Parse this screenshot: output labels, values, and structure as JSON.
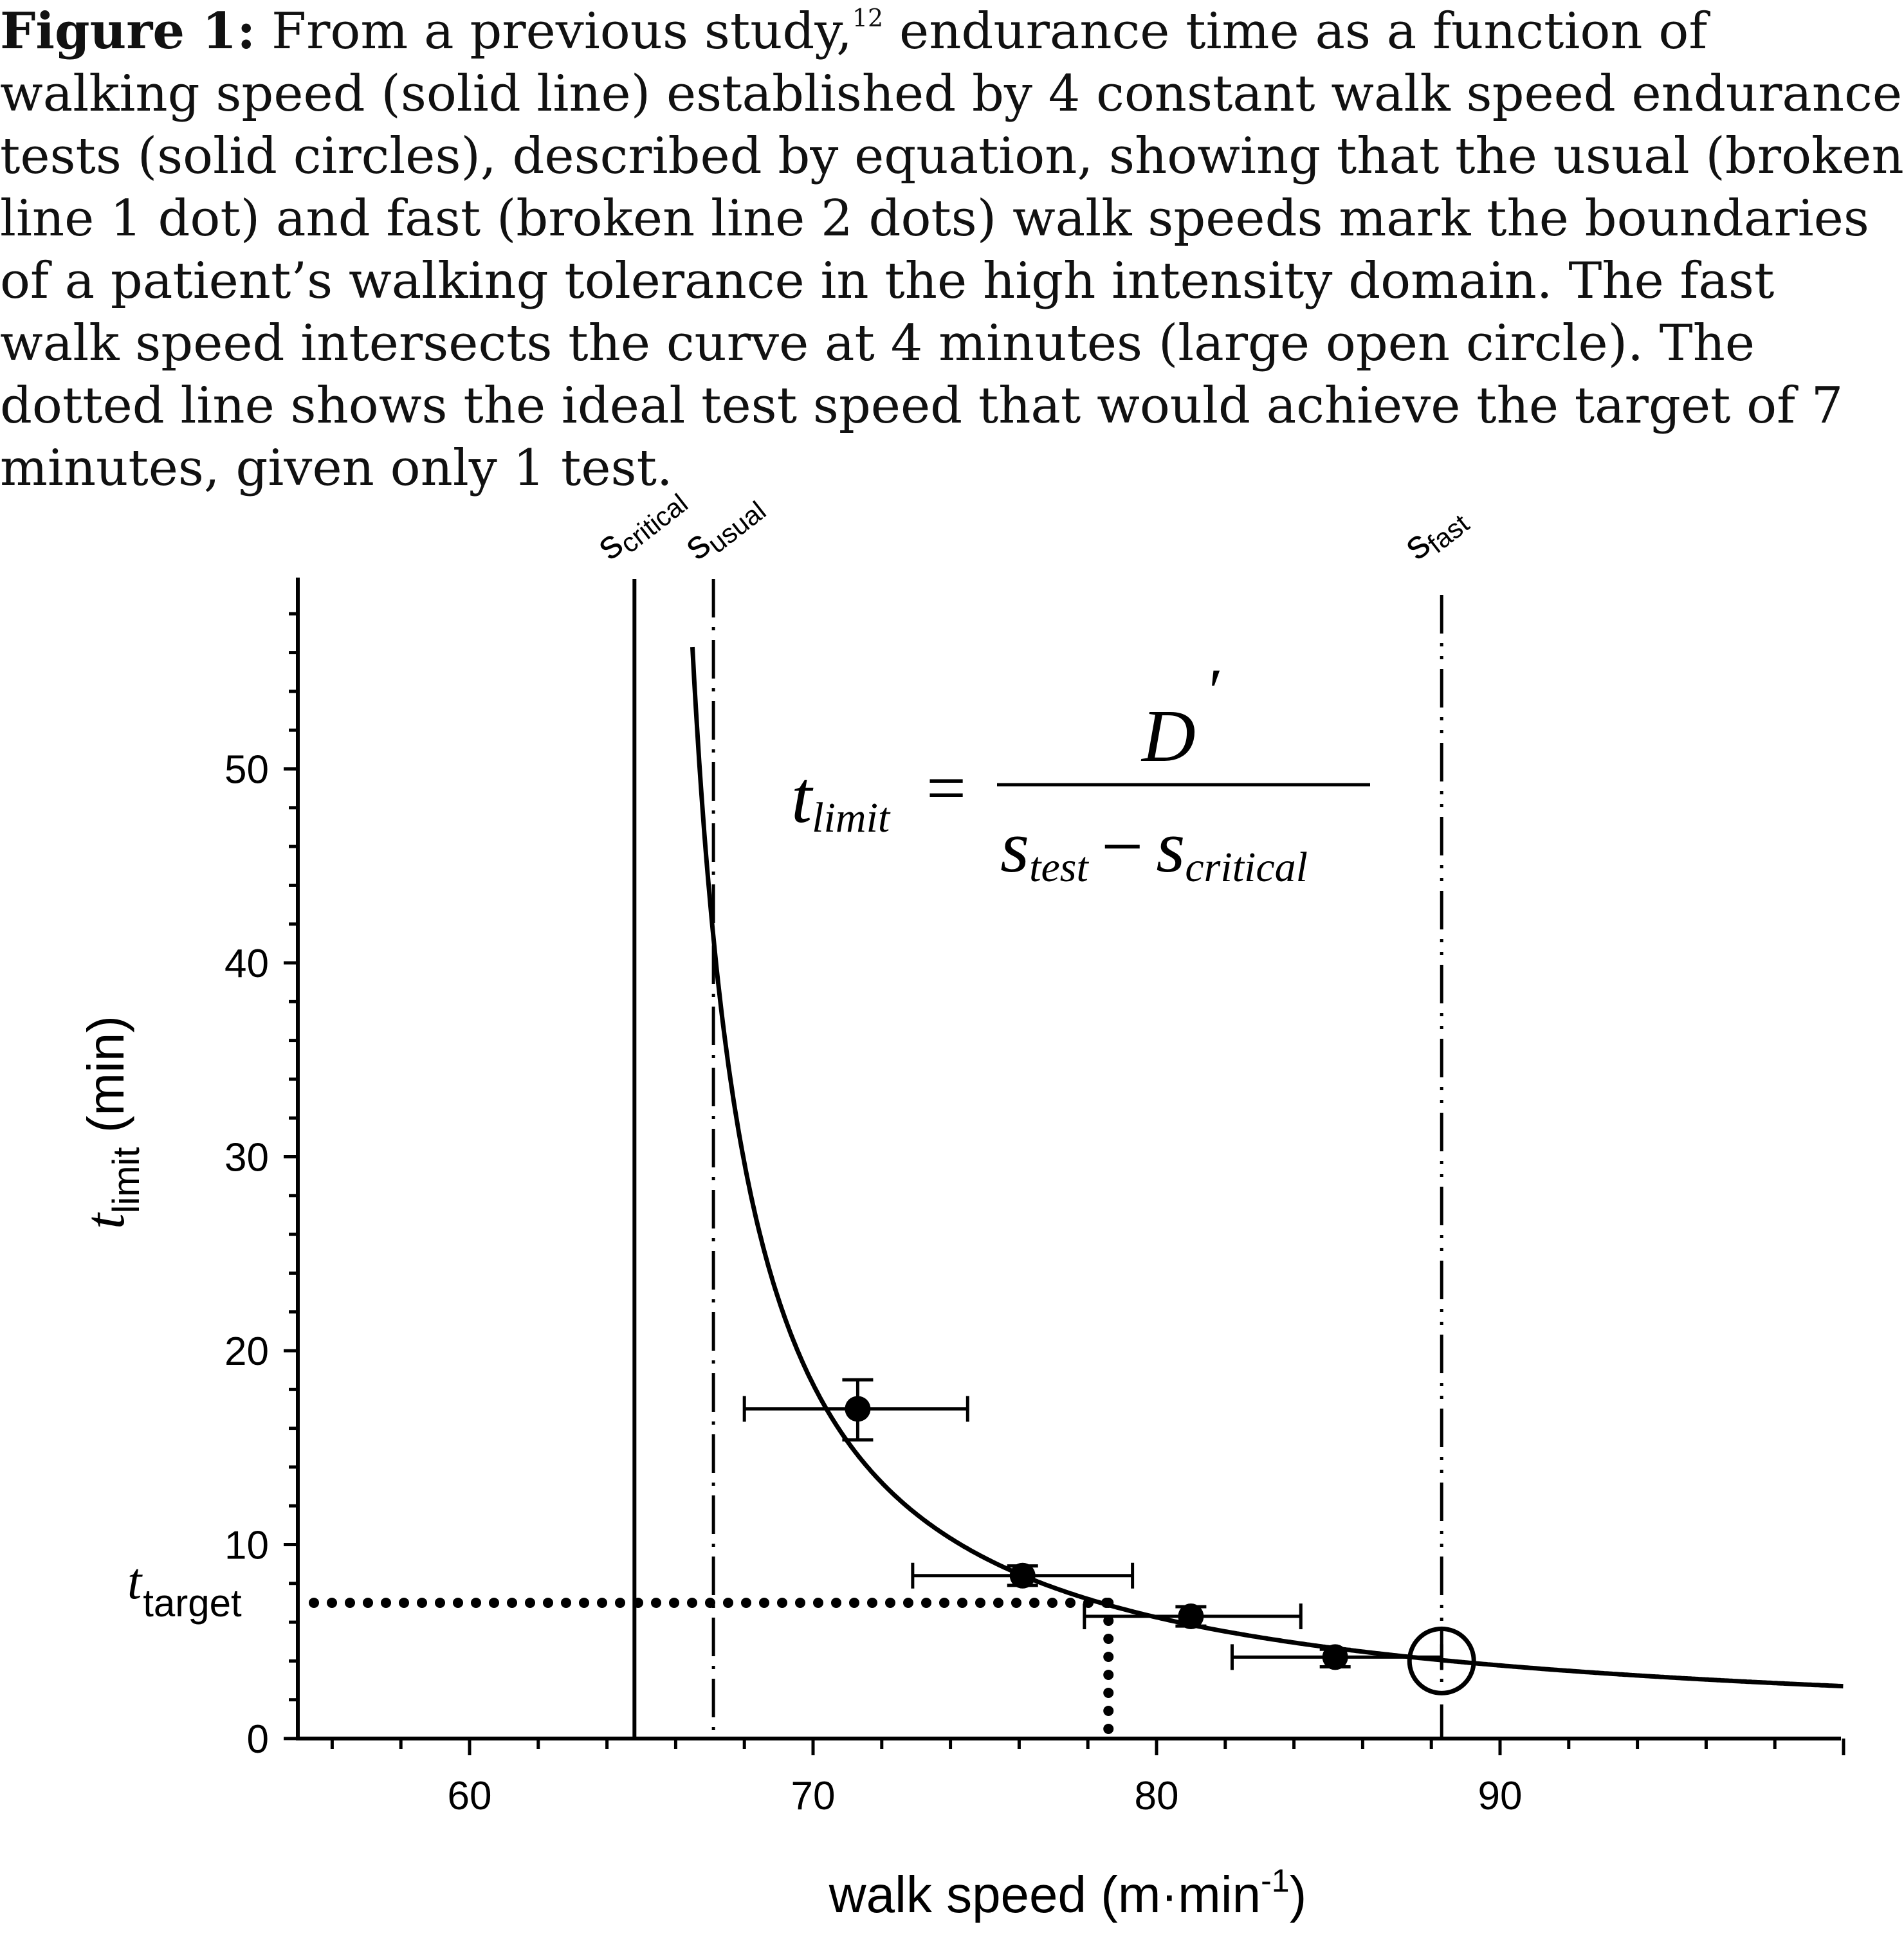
{
  "figure": {
    "caption_label": "Figure 1:",
    "caption_part1": " From a previous study,",
    "caption_ref": "12",
    "caption_part2": " endurance time as a function of walking speed (solid line) established by 4 constant walk speed endurance tests (solid circles), described by equation, showing that the usual (broken line 1 dot) and fast (broken line 2 dots) walk speeds mark the boundaries of a patient’s walking tolerance in the high intensity domain.  The fast walk speed intersects the curve at 4 minutes (large open circle). The dotted line shows the ideal test speed that would achieve the target of 7 minutes, given only 1 test."
  },
  "equation": {
    "lhs_main": "t",
    "lhs_sub": "limit",
    "equals": "=",
    "numerator": "D",
    "prime": "′",
    "den_s1": "s",
    "den_sub1": "test",
    "minus": "−",
    "den_s2": "s",
    "den_sub2": "critical"
  },
  "markers": {
    "critical": {
      "main": "s",
      "sub": "critical"
    },
    "usual": {
      "main": "s",
      "sub": "usual"
    },
    "fast": {
      "main": "s",
      "sub": "fast"
    },
    "target": {
      "main": "t",
      "sub": "target"
    }
  },
  "chart_data": {
    "type": "scatter",
    "xlabel": "walk speed (m·min",
    "xlabel_sup": "-1",
    "xlabel_end": ")",
    "ylabel_main": "t",
    "ylabel_sub": "limit",
    "ylabel_rest": " (min)",
    "xlim": [
      55,
      100
    ],
    "ylim": [
      0,
      58
    ],
    "x_ticks": [
      60,
      70,
      80,
      90
    ],
    "y_ticks": [
      0,
      10,
      20,
      30,
      40,
      50
    ],
    "tests": [
      {
        "speed": 71.3,
        "tlimit": 17.0,
        "speed_err": [
          68.0,
          74.5
        ],
        "tlimit_err": [
          15.4,
          18.5
        ]
      },
      {
        "speed": 76.1,
        "tlimit": 8.4,
        "speed_err": [
          72.9,
          79.3
        ],
        "tlimit_err": [
          7.9,
          8.9
        ]
      },
      {
        "speed": 81.0,
        "tlimit": 6.3,
        "speed_err": [
          77.9,
          84.2
        ],
        "tlimit_err": [
          5.8,
          6.8
        ]
      },
      {
        "speed": 85.2,
        "tlimit": 4.2,
        "speed_err": [
          82.2,
          88.3
        ],
        "tlimit_err": [
          3.7,
          4.6
        ]
      }
    ],
    "curve": {
      "s_critical": 64.8,
      "D_prime": 95.0
    },
    "s_critical": 64.8,
    "s_usual": 67.1,
    "s_fast": 88.3,
    "fast_intersection": {
      "speed": 88.3,
      "tlimit": 4.0
    },
    "target": {
      "tlimit": 7.0,
      "speed": 78.6
    }
  }
}
